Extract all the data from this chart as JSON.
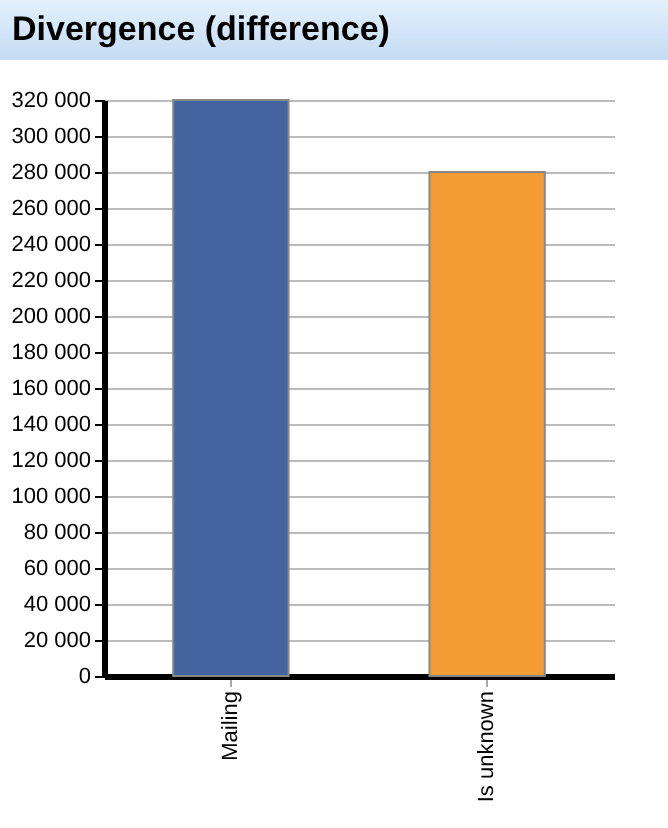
{
  "chart_data": {
    "type": "bar",
    "title": "Divergence (difference)",
    "categories": [
      "Mailing",
      "Is unknown"
    ],
    "values": [
      320000,
      280000
    ],
    "colors": [
      "#4464a0",
      "#f39c35"
    ],
    "ylim": [
      0,
      320000
    ],
    "yticks": [
      {
        "value": 0,
        "label": "0"
      },
      {
        "value": 20000,
        "label": "20 000"
      },
      {
        "value": 40000,
        "label": "40 000"
      },
      {
        "value": 60000,
        "label": "60 000"
      },
      {
        "value": 80000,
        "label": "80 000"
      },
      {
        "value": 100000,
        "label": "100 000"
      },
      {
        "value": 120000,
        "label": "120 000"
      },
      {
        "value": 140000,
        "label": "140 000"
      },
      {
        "value": 160000,
        "label": "160 000"
      },
      {
        "value": 180000,
        "label": "180 000"
      },
      {
        "value": 200000,
        "label": "200 000"
      },
      {
        "value": 220000,
        "label": "220 000"
      },
      {
        "value": 240000,
        "label": "240 000"
      },
      {
        "value": 260000,
        "label": "260 000"
      },
      {
        "value": 280000,
        "label": "280 000"
      },
      {
        "value": 300000,
        "label": "300 000"
      },
      {
        "value": 320000,
        "label": "320 000"
      }
    ],
    "grid": "y"
  }
}
